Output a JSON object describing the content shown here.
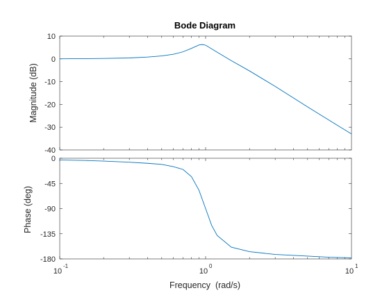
{
  "chart_data": {
    "type": "line",
    "title": "Bode Diagram",
    "xlabel": "Frequency  (rad/s)",
    "xscale": "log",
    "xlim": [
      0.1,
      10
    ],
    "x_ticks": [
      0.1,
      1,
      10
    ],
    "x_tick_labels": [
      {
        "base": "10",
        "exp": "-1"
      },
      {
        "base": "10",
        "exp": "0"
      },
      {
        "base": "10",
        "exp": "1"
      }
    ],
    "grid": false,
    "line_color": "#0072BD",
    "panels": [
      {
        "ylabel": "Magnitude (dB)",
        "ylim": [
          -40,
          10
        ],
        "yticks": [
          10,
          0,
          -10,
          -20,
          -30,
          -40
        ],
        "ytick_labels": [
          "10",
          "0",
          "-10",
          "-20",
          "-30",
          "-40"
        ],
        "series": [
          {
            "x": [
              0.1,
              0.15,
              0.2,
              0.3,
              0.4,
              0.5,
              0.6,
              0.7,
              0.8,
              0.9,
              0.95,
              1.0,
              1.1,
              1.2,
              1.5,
              2,
              3,
              5,
              7,
              10
            ],
            "y": [
              0.05,
              0.1,
              0.2,
              0.4,
              0.8,
              1.3,
              2.0,
              3.1,
              4.6,
              6.1,
              6.3,
              6.0,
              4.4,
              2.9,
              -0.8,
              -5.3,
              -12.1,
              -21.1,
              -26.9,
              -33.0
            ]
          }
        ]
      },
      {
        "ylabel": "Phase (deg)",
        "ylim": [
          -180,
          0
        ],
        "yticks": [
          0,
          -45,
          -90,
          -135,
          -180
        ],
        "ytick_labels": [
          "0",
          "-45",
          "-90",
          "-135",
          "-180"
        ],
        "series": [
          {
            "x": [
              0.1,
              0.15,
              0.2,
              0.3,
              0.4,
              0.5,
              0.6,
              0.7,
              0.8,
              0.9,
              1.0,
              1.1,
              1.2,
              1.5,
              2,
              3,
              5,
              7,
              10
            ],
            "y": [
              -3,
              -4,
              -5,
              -7,
              -9,
              -11,
              -15,
              -20,
              -33,
              -57,
              -90,
              -120,
              -138,
              -159,
              -167,
              -172,
              -175,
              -177,
              -178
            ]
          }
        ]
      }
    ]
  }
}
